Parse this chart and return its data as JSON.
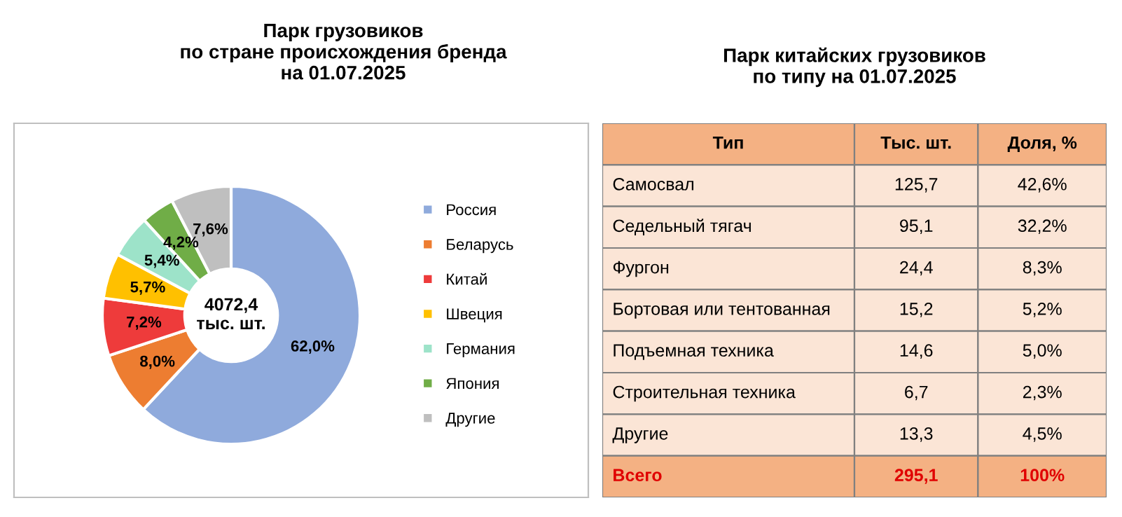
{
  "chart_data": [
    {
      "type": "donut",
      "title": "Парк грузовиков\nпо стране происхождения бренда\nна 01.07.2025",
      "categories": [
        "Россия",
        "Беларусь",
        "Китай",
        "Швеция",
        "Германия",
        "Япония",
        "Другие"
      ],
      "values": [
        62.0,
        8.0,
        7.2,
        5.7,
        5.4,
        4.2,
        7.6
      ],
      "value_labels": [
        "62,0%",
        "8,0%",
        "7,2%",
        "5,7%",
        "5,4%",
        "4,2%",
        "7,6%"
      ],
      "colors": [
        "#8faadc",
        "#ed7d31",
        "#ee3b3b",
        "#ffc000",
        "#9de3c9",
        "#70ad47",
        "#bfbfbf"
      ],
      "annotations": [
        "4072,4\nтыс. шт."
      ],
      "legend": "right"
    },
    {
      "type": "other",
      "title": "Парк китайских грузовиков\nпо типу на 01.07.2025",
      "xlabel": "Тип",
      "categories": [
        "Самосвал",
        "Седельный тягач",
        "Фургон",
        "Бортовая или тентованная",
        "Подъемная техника",
        "Строительная техника",
        "Другие",
        "Всего"
      ],
      "colors": [
        "#fbe5d6",
        "#fbe5d6",
        "#fbe5d6",
        "#fbe5d6",
        "#fbe5d6",
        "#fbe5d6",
        "#fbe5d6",
        "#f4b183"
      ],
      "series": [
        {
          "name": "Тыс. шт.",
          "values": [
            125.7,
            95.1,
            24.4,
            15.2,
            14.6,
            6.7,
            13.3,
            295.1
          ],
          "colors": [
            "#fbe5d6",
            "#fbe5d6",
            "#fbe5d6",
            "#fbe5d6",
            "#fbe5d6",
            "#fbe5d6",
            "#fbe5d6",
            "#f4b183"
          ],
          "value_labels": [
            "125,7",
            "95,1",
            "24,4",
            "15,2",
            "14,6",
            "6,7",
            "13,3",
            "295,1"
          ]
        },
        {
          "name": "Доля, %",
          "values": [
            42.6,
            32.2,
            8.3,
            5.2,
            5.0,
            2.3,
            4.5,
            100
          ],
          "colors": [
            "#fbe5d6",
            "#fbe5d6",
            "#fbe5d6",
            "#fbe5d6",
            "#fbe5d6",
            "#fbe5d6",
            "#fbe5d6",
            "#f4b183"
          ],
          "value_labels": [
            "42,6%",
            "32,2%",
            "8,3%",
            "5,2%",
            "5,0%",
            "2,3%",
            "4,5%",
            "100%"
          ]
        }
      ]
    }
  ]
}
